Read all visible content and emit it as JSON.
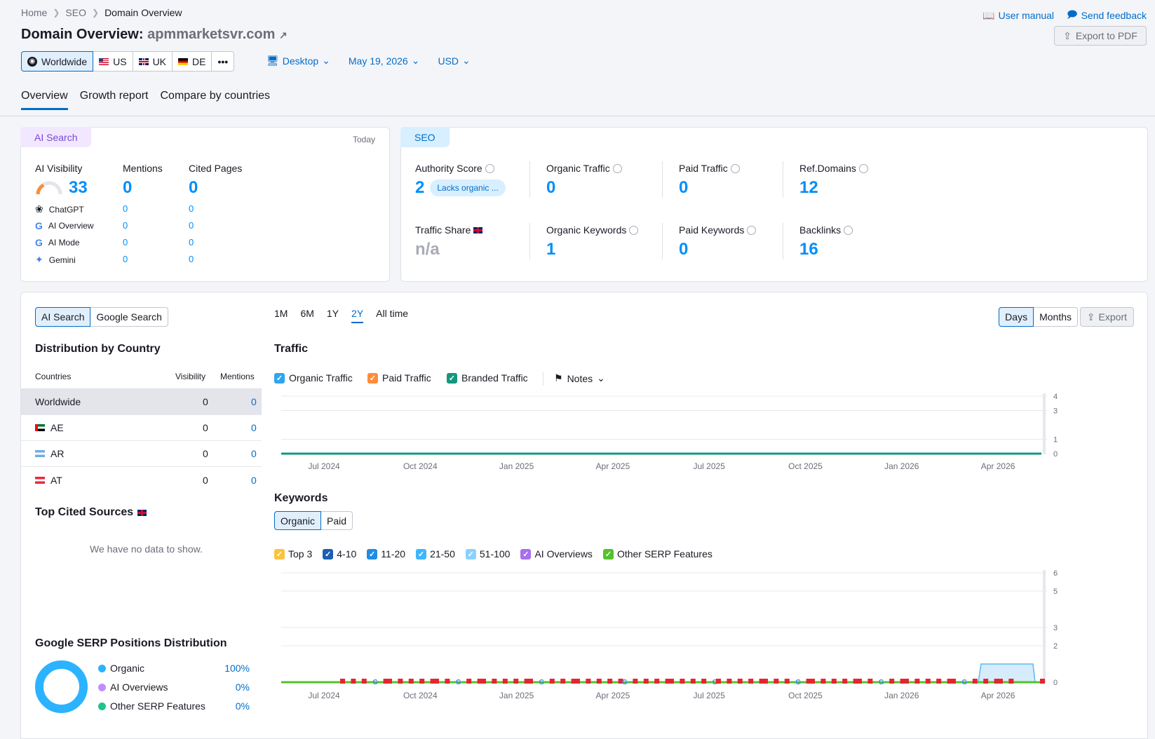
{
  "breadcrumb": [
    "Home",
    "SEO",
    "Domain Overview"
  ],
  "top_links": {
    "manual": "User manual",
    "feedback": "Send feedback"
  },
  "title": {
    "prefix": "Domain Overview:",
    "domain": "apmmarketsvr.com"
  },
  "export_pdf": "Export to PDF",
  "databases": [
    {
      "label": "Worldwide",
      "icon": "globe-icon"
    },
    {
      "label": "US",
      "icon": "flag-us"
    },
    {
      "label": "UK",
      "icon": "flag-uk"
    },
    {
      "label": "DE",
      "icon": "flag-de"
    },
    {
      "label": "•••",
      "icon": "more-icon"
    }
  ],
  "device": "Desktop",
  "date": "May 19, 2026",
  "currency": "USD",
  "tabs": [
    "Overview",
    "Growth report",
    "Compare by countries"
  ],
  "ai_card": {
    "pill": "AI Search",
    "period": "Today",
    "visibility_label": "AI Visibility",
    "visibility": "33",
    "mentions_label": "Mentions",
    "mentions": "0",
    "cited_label": "Cited Pages",
    "cited": "0",
    "rows": [
      {
        "name": "ChatGPT",
        "icon": "chatgpt-icon",
        "mentions": "0",
        "cited": "0"
      },
      {
        "name": "AI Overview",
        "icon": "google-icon",
        "mentions": "0",
        "cited": "0"
      },
      {
        "name": "AI Mode",
        "icon": "google-icon",
        "mentions": "0",
        "cited": "0"
      },
      {
        "name": "Gemini",
        "icon": "gemini-icon",
        "mentions": "0",
        "cited": "0"
      }
    ]
  },
  "seo_card": {
    "pill": "SEO",
    "authority_label": "Authority Score",
    "authority": "2",
    "authority_badge": "Lacks organic ...",
    "organic_traffic_label": "Organic Traffic",
    "organic_traffic": "0",
    "paid_traffic_label": "Paid Traffic",
    "paid_traffic": "0",
    "ref_domains_label": "Ref.Domains",
    "ref_domains": "12",
    "traffic_share_label": "Traffic Share",
    "traffic_share": "n/a",
    "organic_keywords_label": "Organic Keywords",
    "organic_keywords": "1",
    "paid_keywords_label": "Paid Keywords",
    "paid_keywords": "0",
    "backlinks_label": "Backlinks",
    "backlinks": "16"
  },
  "left_panel": {
    "seg": [
      "AI Search",
      "Google Search"
    ],
    "dist_title": "Distribution by Country",
    "columns": [
      "Countries",
      "Visibility",
      "Mentions"
    ],
    "rows": [
      {
        "country": "Worldwide",
        "visibility": "0",
        "mentions": "0"
      },
      {
        "country": "AE",
        "visibility": "0",
        "mentions": "0"
      },
      {
        "country": "AR",
        "visibility": "0",
        "mentions": "0"
      },
      {
        "country": "AT",
        "visibility": "0",
        "mentions": "0"
      }
    ],
    "cited_title": "Top Cited Sources",
    "no_data": "We have no data to show.",
    "serp_title": "Google SERP Positions Distribution",
    "serp": [
      {
        "name": "Organic",
        "value": "100%",
        "color": "#2bb3ff"
      },
      {
        "name": "AI Overviews",
        "value": "0%",
        "color": "#c18cff"
      },
      {
        "name": "Other SERP Features",
        "value": "0%",
        "color": "#21c28e"
      }
    ]
  },
  "range_buttons": [
    "1M",
    "6M",
    "1Y",
    "2Y",
    "All time"
  ],
  "range_selected": "2Y",
  "granularity": [
    "Days",
    "Months"
  ],
  "export": "Export",
  "traffic": {
    "title": "Traffic",
    "legend": [
      {
        "name": "Organic Traffic",
        "color": "#2fa5f0"
      },
      {
        "name": "Paid Traffic",
        "color": "#ff8c39"
      },
      {
        "name": "Branded Traffic",
        "color": "#13977e"
      }
    ],
    "notes": "Notes"
  },
  "keywords": {
    "title": "Keywords",
    "seg": [
      "Organic",
      "Paid"
    ],
    "legend": [
      {
        "name": "Top 3",
        "color": "#fdc23c"
      },
      {
        "name": "4-10",
        "color": "#1c5fb5"
      },
      {
        "name": "11-20",
        "color": "#1f8ce6"
      },
      {
        "name": "21-50",
        "color": "#3fb6ff"
      },
      {
        "name": "51-100",
        "color": "#8bd1ff"
      },
      {
        "name": "AI Overviews",
        "color": "#a86ff0"
      },
      {
        "name": "Other SERP Features",
        "color": "#53c22b"
      }
    ]
  },
  "chart_data": [
    {
      "type": "line",
      "title": "Traffic",
      "x": [
        "Jul 2024",
        "Oct 2024",
        "Jan 2025",
        "Apr 2025",
        "Jul 2025",
        "Oct 2025",
        "Jan 2026",
        "Apr 2026"
      ],
      "y_ticks": [
        "0",
        "1",
        "3",
        "4"
      ],
      "ylim": [
        0,
        4
      ],
      "series": [
        {
          "name": "Organic Traffic",
          "values": [
            0,
            0,
            0,
            0,
            0,
            0,
            0,
            0
          ]
        },
        {
          "name": "Paid Traffic",
          "values": [
            0,
            0,
            0,
            0,
            0,
            0,
            0,
            0
          ]
        },
        {
          "name": "Branded Traffic",
          "values": [
            0,
            0,
            0,
            0,
            0,
            0,
            0,
            0
          ]
        }
      ]
    },
    {
      "type": "area",
      "title": "Keywords",
      "x": [
        "Jul 2024",
        "Oct 2024",
        "Jan 2025",
        "Apr 2025",
        "Jul 2025",
        "Oct 2025",
        "Jan 2026",
        "Apr 2026"
      ],
      "y_ticks": [
        "0",
        "2",
        "3",
        "5",
        "6"
      ],
      "ylim": [
        0,
        6
      ],
      "series": [
        {
          "name": "51-100",
          "values": [
            0,
            0,
            0,
            0,
            0,
            0,
            0,
            1
          ]
        },
        {
          "name": "Other SERP Features",
          "values": [
            0,
            0,
            0,
            0,
            0,
            0,
            0,
            0
          ]
        }
      ]
    }
  ]
}
